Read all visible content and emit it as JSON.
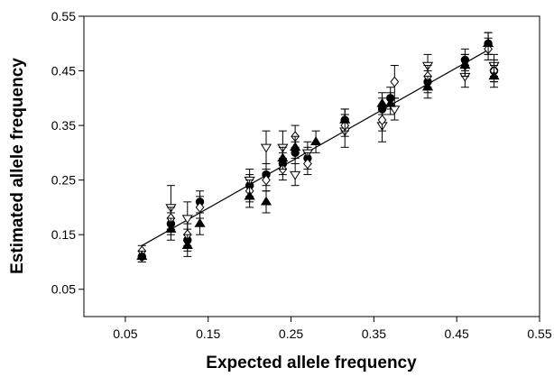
{
  "chart_data": {
    "type": "scatter",
    "xlabel": "Expected allele frequency",
    "ylabel": "Estimated allele frequency",
    "xlim": [
      0,
      0.55
    ],
    "ylim": [
      0,
      0.55
    ],
    "x_ticks": [
      0.05,
      0.15,
      0.25,
      0.35,
      0.45,
      0.55
    ],
    "y_ticks": [
      0.05,
      0.15,
      0.25,
      0.35,
      0.45,
      0.55
    ],
    "x_tick_labels": [
      "0.05",
      "0.15",
      "0.25",
      "0.35",
      "0.45",
      "0.55"
    ],
    "y_tick_labels": [
      "0.05",
      "0.15",
      "0.25",
      "0.35",
      "0.45",
      "0.55"
    ],
    "grid": false,
    "reference_line": {
      "x": [
        0.07,
        0.49
      ],
      "y": [
        0.13,
        0.49
      ]
    },
    "series": [
      {
        "marker": "filled-circle",
        "color": "#000000",
        "points": [
          {
            "x": 0.07,
            "y": 0.11,
            "err": 0.01
          },
          {
            "x": 0.105,
            "y": 0.17,
            "err": 0.02
          },
          {
            "x": 0.125,
            "y": 0.14,
            "err": 0.02
          },
          {
            "x": 0.14,
            "y": 0.21,
            "err": 0.02
          },
          {
            "x": 0.2,
            "y": 0.24,
            "err": 0.02
          },
          {
            "x": 0.22,
            "y": 0.26,
            "err": 0.02
          },
          {
            "x": 0.24,
            "y": 0.28,
            "err": 0.02
          },
          {
            "x": 0.255,
            "y": 0.3,
            "err": 0.02
          },
          {
            "x": 0.27,
            "y": 0.29,
            "err": 0.02
          },
          {
            "x": 0.315,
            "y": 0.36,
            "err": 0.02
          },
          {
            "x": 0.36,
            "y": 0.38,
            "err": 0.02
          },
          {
            "x": 0.37,
            "y": 0.4,
            "err": 0.02
          },
          {
            "x": 0.415,
            "y": 0.43,
            "err": 0.02
          },
          {
            "x": 0.46,
            "y": 0.47,
            "err": 0.02
          },
          {
            "x": 0.488,
            "y": 0.5,
            "err": 0.02
          },
          {
            "x": 0.495,
            "y": 0.45,
            "err": 0.02
          }
        ]
      },
      {
        "marker": "open-triangle-down",
        "color": "#000000",
        "points": [
          {
            "x": 0.105,
            "y": 0.2,
            "err": 0.04
          },
          {
            "x": 0.125,
            "y": 0.18,
            "err": 0.03
          },
          {
            "x": 0.2,
            "y": 0.25,
            "err": 0.02
          },
          {
            "x": 0.22,
            "y": 0.31,
            "err": 0.03
          },
          {
            "x": 0.24,
            "y": 0.31,
            "err": 0.03
          },
          {
            "x": 0.255,
            "y": 0.26,
            "err": 0.02
          },
          {
            "x": 0.27,
            "y": 0.3,
            "err": 0.02
          },
          {
            "x": 0.315,
            "y": 0.34,
            "err": 0.03
          },
          {
            "x": 0.36,
            "y": 0.35,
            "err": 0.03
          },
          {
            "x": 0.375,
            "y": 0.38,
            "err": 0.02
          },
          {
            "x": 0.415,
            "y": 0.46,
            "err": 0.02
          },
          {
            "x": 0.46,
            "y": 0.44,
            "err": 0.02
          },
          {
            "x": 0.495,
            "y": 0.46,
            "err": 0.02
          }
        ]
      },
      {
        "marker": "open-diamond",
        "color": "#000000",
        "points": [
          {
            "x": 0.07,
            "y": 0.12,
            "err": 0.01
          },
          {
            "x": 0.105,
            "y": 0.18,
            "err": 0.02
          },
          {
            "x": 0.125,
            "y": 0.15,
            "err": 0.02
          },
          {
            "x": 0.14,
            "y": 0.2,
            "err": 0.02
          },
          {
            "x": 0.2,
            "y": 0.23,
            "err": 0.02
          },
          {
            "x": 0.22,
            "y": 0.25,
            "err": 0.02
          },
          {
            "x": 0.24,
            "y": 0.27,
            "err": 0.02
          },
          {
            "x": 0.255,
            "y": 0.33,
            "err": 0.02
          },
          {
            "x": 0.27,
            "y": 0.28,
            "err": 0.02
          },
          {
            "x": 0.315,
            "y": 0.35,
            "err": 0.02
          },
          {
            "x": 0.36,
            "y": 0.36,
            "err": 0.02
          },
          {
            "x": 0.375,
            "y": 0.43,
            "err": 0.03
          },
          {
            "x": 0.415,
            "y": 0.44,
            "err": 0.02
          },
          {
            "x": 0.46,
            "y": 0.46,
            "err": 0.02
          },
          {
            "x": 0.488,
            "y": 0.49,
            "err": 0.02
          },
          {
            "x": 0.495,
            "y": 0.45,
            "err": 0.02
          }
        ]
      },
      {
        "marker": "filled-triangle-up",
        "color": "#000000",
        "points": [
          {
            "x": 0.07,
            "y": 0.11,
            "err": 0.01
          },
          {
            "x": 0.105,
            "y": 0.16,
            "err": 0.02
          },
          {
            "x": 0.125,
            "y": 0.13,
            "err": 0.02
          },
          {
            "x": 0.14,
            "y": 0.17,
            "err": 0.02
          },
          {
            "x": 0.2,
            "y": 0.22,
            "err": 0.02
          },
          {
            "x": 0.22,
            "y": 0.21,
            "err": 0.02
          },
          {
            "x": 0.24,
            "y": 0.29,
            "err": 0.02
          },
          {
            "x": 0.255,
            "y": 0.31,
            "err": 0.02
          },
          {
            "x": 0.28,
            "y": 0.32,
            "err": 0.02
          },
          {
            "x": 0.315,
            "y": 0.36,
            "err": 0.02
          },
          {
            "x": 0.36,
            "y": 0.39,
            "err": 0.02
          },
          {
            "x": 0.37,
            "y": 0.39,
            "err": 0.02
          },
          {
            "x": 0.415,
            "y": 0.42,
            "err": 0.02
          },
          {
            "x": 0.46,
            "y": 0.46,
            "err": 0.02
          },
          {
            "x": 0.488,
            "y": 0.5,
            "err": 0.02
          },
          {
            "x": 0.495,
            "y": 0.44,
            "err": 0.02
          }
        ]
      }
    ]
  }
}
